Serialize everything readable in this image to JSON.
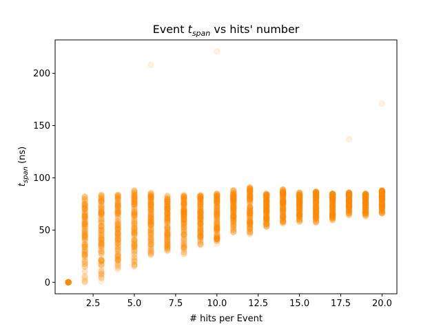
{
  "chart_data": {
    "type": "scatter",
    "title_prefix": "Event ",
    "title_math": {
      "base": "t",
      "sub": "span"
    },
    "title_suffix": " vs hits' number",
    "xlabel": "# hits per Event",
    "ylabel_math": {
      "base": "t",
      "sub": "span"
    },
    "ylabel_suffix": " (ns)",
    "xlim": [
      0.2,
      20.9
    ],
    "ylim": [
      -11,
      232
    ],
    "xticks": [
      2.5,
      5.0,
      7.5,
      10.0,
      12.5,
      15.0,
      17.5,
      20.0
    ],
    "xtick_labels": [
      "2.5",
      "5.0",
      "7.5",
      "10.0",
      "12.5",
      "15.0",
      "17.5",
      "20.0"
    ],
    "yticks": [
      0,
      50,
      100,
      150,
      200
    ],
    "ytick_labels": [
      "0",
      "50",
      "100",
      "150",
      "200"
    ],
    "grid": false,
    "marker_color": "#ff8c00",
    "marker_alpha": 0.12,
    "columns": [
      {
        "x": 1,
        "y_min": 0,
        "y_max": 0
      },
      {
        "x": 2,
        "y_min": 0,
        "y_max": 82
      },
      {
        "x": 3,
        "y_min": 1,
        "y_max": 84
      },
      {
        "x": 4,
        "y_min": 12,
        "y_max": 84
      },
      {
        "x": 5,
        "y_min": 15,
        "y_max": 88
      },
      {
        "x": 6,
        "y_min": 26,
        "y_max": 86
      },
      {
        "x": 7,
        "y_min": 30,
        "y_max": 83
      },
      {
        "x": 8,
        "y_min": 27,
        "y_max": 84
      },
      {
        "x": 9,
        "y_min": 36,
        "y_max": 84
      },
      {
        "x": 10,
        "y_min": 37,
        "y_max": 85
      },
      {
        "x": 11,
        "y_min": 48,
        "y_max": 88
      },
      {
        "x": 12,
        "y_min": 46,
        "y_max": 91
      },
      {
        "x": 13,
        "y_min": 53,
        "y_max": 85
      },
      {
        "x": 14,
        "y_min": 56,
        "y_max": 89
      },
      {
        "x": 15,
        "y_min": 58,
        "y_max": 86
      },
      {
        "x": 16,
        "y_min": 57,
        "y_max": 87
      },
      {
        "x": 17,
        "y_min": 59,
        "y_max": 85
      },
      {
        "x": 18,
        "y_min": 64,
        "y_max": 86
      },
      {
        "x": 19,
        "y_min": 63,
        "y_max": 85
      },
      {
        "x": 20,
        "y_min": 66,
        "y_max": 88
      }
    ],
    "outliers": [
      {
        "x": 6,
        "y": 208
      },
      {
        "x": 10,
        "y": 221
      },
      {
        "x": 18,
        "y": 137
      },
      {
        "x": 20,
        "y": 171
      }
    ]
  }
}
